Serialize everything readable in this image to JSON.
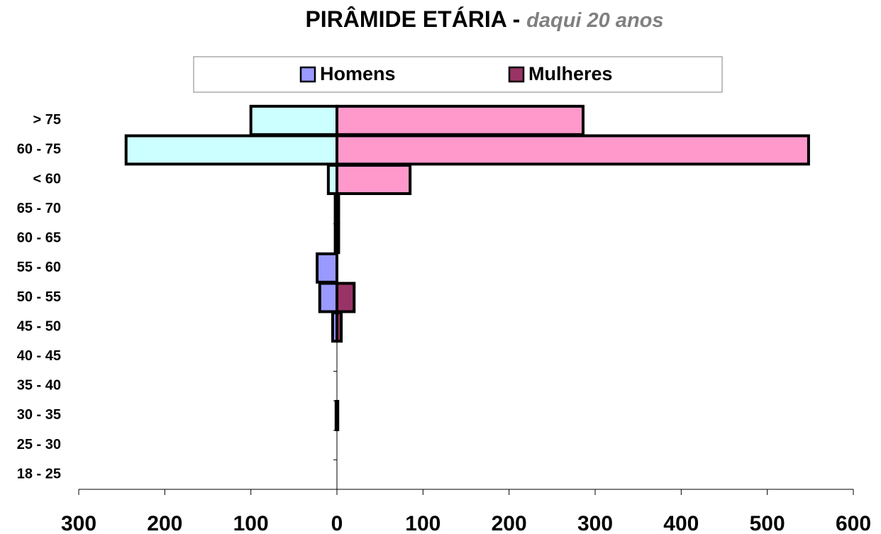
{
  "chart_data": {
    "type": "pyramid",
    "title": "PIRÂMIDE ETÁRIA -",
    "subtitle": "daqui 20 anos",
    "categories": [
      "> 75",
      "60 - 75",
      "< 60",
      "65 - 70",
      "60 - 65",
      "55 - 60",
      "50 - 55",
      "45 - 50",
      "40 - 45",
      "35 - 40",
      "30 - 35",
      "25 - 30",
      "18 - 25"
    ],
    "series": [
      {
        "name": "Homens",
        "color": "#9999ff",
        "values": [
          -100,
          -245,
          -10,
          -2,
          -2,
          -23,
          -20,
          -5,
          0,
          0,
          -1,
          0,
          0
        ],
        "colors": [
          "#ccffff",
          "#ccffff",
          "#ccffff",
          "#9999ff",
          "#9999ff",
          "#9999ff",
          "#9999ff",
          "#9999ff",
          "#9999ff",
          "#9999ff",
          "#9999ff",
          "#9999ff",
          "#9999ff"
        ]
      },
      {
        "name": "Mulheres",
        "color": "#993366",
        "values": [
          286,
          548,
          85,
          2,
          2,
          0,
          20,
          5,
          0,
          0,
          1,
          0,
          0
        ],
        "colors": [
          "#ff99cc",
          "#ff99cc",
          "#ff99cc",
          "#993366",
          "#993366",
          "#993366",
          "#993366",
          "#993366",
          "#993366",
          "#993366",
          "#993366",
          "#993366",
          "#993366"
        ]
      }
    ],
    "xlim": [
      -300,
      600
    ],
    "xticks": [
      {
        "value": -300,
        "label": "300"
      },
      {
        "value": -200,
        "label": "200"
      },
      {
        "value": -100,
        "label": "100"
      },
      0,
      100,
      200,
      300,
      400,
      500,
      600
    ],
    "legend": "top"
  }
}
